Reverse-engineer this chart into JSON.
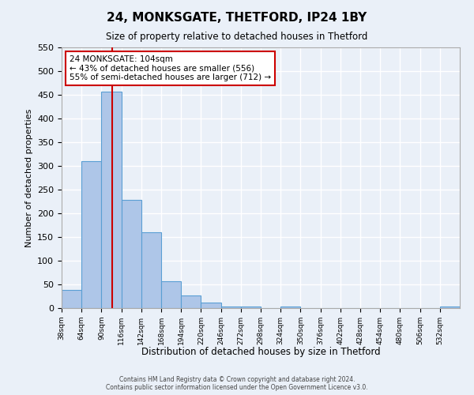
{
  "title": "24, MONKSGATE, THETFORD, IP24 1BY",
  "subtitle": "Size of property relative to detached houses in Thetford",
  "xlabel": "Distribution of detached houses by size in Thetford",
  "ylabel": "Number of detached properties",
  "bin_edges": [
    38,
    64,
    90,
    116,
    142,
    168,
    194,
    220,
    246,
    272,
    298,
    324,
    350,
    376,
    402,
    428,
    454,
    480,
    506,
    532,
    558
  ],
  "bar_heights": [
    38,
    310,
    456,
    228,
    160,
    57,
    26,
    12,
    3,
    3,
    0,
    3,
    0,
    0,
    0,
    0,
    0,
    0,
    0,
    3
  ],
  "bar_color": "#aec6e8",
  "bar_edge_color": "#5a9fd4",
  "background_color": "#eaf0f8",
  "grid_color": "#ffffff",
  "vline_x": 104,
  "vline_color": "#cc0000",
  "annotation_title": "24 MONKSGATE: 104sqm",
  "annotation_line1": "← 43% of detached houses are smaller (556)",
  "annotation_line2": "55% of semi-detached houses are larger (712) →",
  "annotation_box_color": "#ffffff",
  "annotation_border_color": "#cc0000",
  "ylim": [
    0,
    550
  ],
  "yticks": [
    0,
    50,
    100,
    150,
    200,
    250,
    300,
    350,
    400,
    450,
    500,
    550
  ],
  "footer_line1": "Contains HM Land Registry data © Crown copyright and database right 2024.",
  "footer_line2": "Contains public sector information licensed under the Open Government Licence v3.0."
}
